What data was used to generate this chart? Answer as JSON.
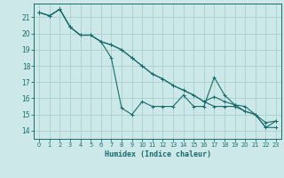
{
  "title": "",
  "xlabel": "Humidex (Indice chaleur)",
  "bg_color": "#cce8e8",
  "grid_color": "#aacfcf",
  "line_color": "#1a6b6b",
  "xlim": [
    -0.5,
    23.5
  ],
  "ylim": [
    13.5,
    21.85
  ],
  "yticks": [
    14,
    15,
    16,
    17,
    18,
    19,
    20,
    21
  ],
  "xticks": [
    0,
    1,
    2,
    3,
    4,
    5,
    6,
    7,
    8,
    9,
    10,
    11,
    12,
    13,
    14,
    15,
    16,
    17,
    18,
    19,
    20,
    21,
    22,
    23
  ],
  "series": [
    [
      21.3,
      21.1,
      21.5,
      20.4,
      19.9,
      19.9,
      19.5,
      18.5,
      15.4,
      15.0,
      15.8,
      15.5,
      15.5,
      15.5,
      16.2,
      15.5,
      15.5,
      17.3,
      16.2,
      15.6,
      15.5,
      15.0,
      14.5,
      14.6
    ],
    [
      21.3,
      21.1,
      21.5,
      20.4,
      19.9,
      19.9,
      19.5,
      19.3,
      19.0,
      18.5,
      18.0,
      17.5,
      17.2,
      16.8,
      16.5,
      16.2,
      15.8,
      16.1,
      15.8,
      15.6,
      15.2,
      15.0,
      14.2,
      14.6
    ],
    [
      21.3,
      21.1,
      21.5,
      20.4,
      19.9,
      19.9,
      19.5,
      19.3,
      19.0,
      18.5,
      18.0,
      17.5,
      17.2,
      16.8,
      16.5,
      16.2,
      15.8,
      15.5,
      15.5,
      15.5,
      15.2,
      15.0,
      14.2,
      14.2
    ]
  ]
}
